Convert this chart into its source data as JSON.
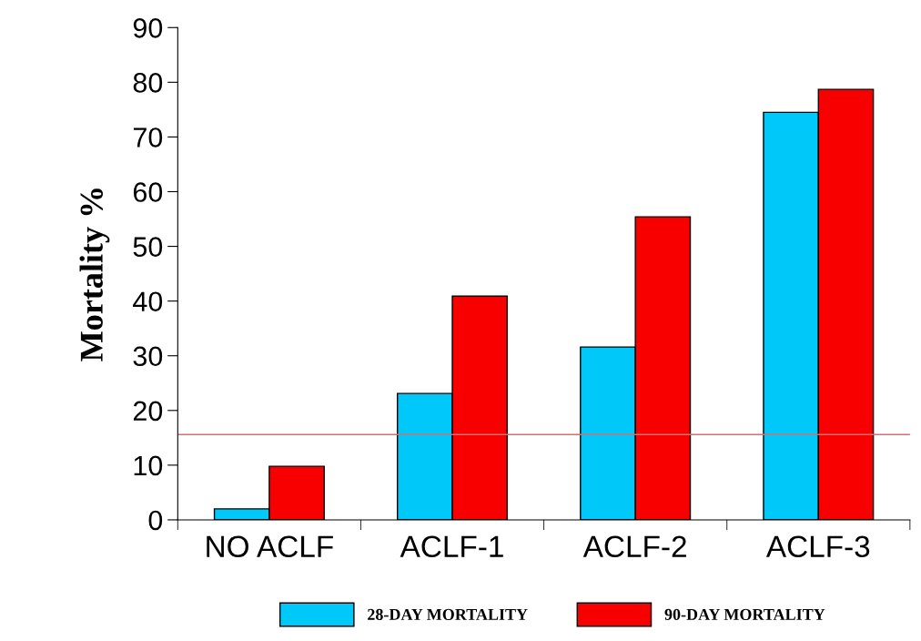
{
  "chart_data": {
    "type": "bar",
    "ylabel": "Mortality %",
    "categories": [
      "NO ACLF",
      "ACLF-1",
      "ACLF-2",
      "ACLF-3"
    ],
    "series": [
      {
        "name": "28-DAY MORTALITY",
        "color": "#00c8f8",
        "values": [
          2.0,
          23.1,
          31.6,
          74.5
        ]
      },
      {
        "name": "90-DAY MORTALITY",
        "color": "#f80000",
        "values": [
          9.8,
          40.9,
          55.4,
          78.7
        ]
      }
    ],
    "ylim": [
      0,
      90
    ],
    "yticks": [
      0,
      10,
      20,
      30,
      40,
      50,
      60,
      70,
      80,
      90
    ],
    "ref_lines": [
      {
        "axis": "y",
        "value": 15.6,
        "label": null,
        "color": "#d07070",
        "line_style": "solid"
      }
    ],
    "grid": false,
    "legend": "bottom"
  }
}
